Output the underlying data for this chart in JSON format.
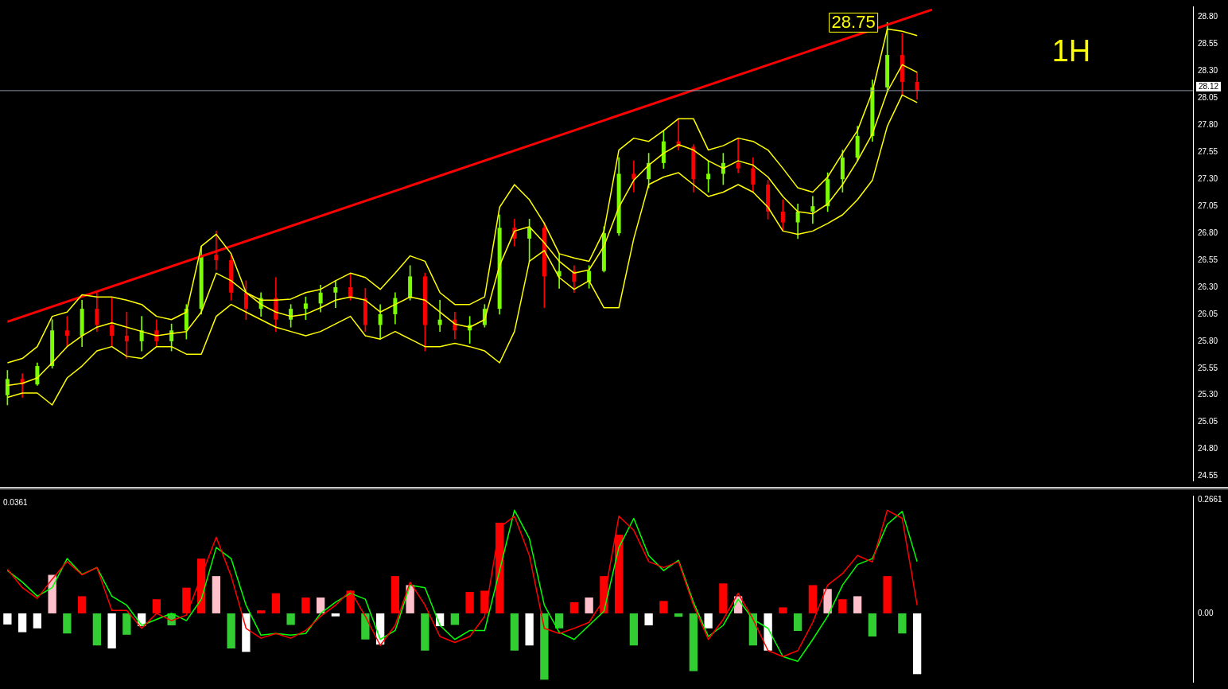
{
  "chart_data": [
    {
      "type": "candlestick",
      "categories": [
        null,
        null,
        null,
        null,
        null,
        null,
        null,
        null,
        null,
        null,
        null,
        null,
        null,
        null,
        null,
        null,
        null,
        null,
        null,
        null,
        null,
        null,
        null,
        null,
        null,
        null,
        null,
        null,
        null,
        null,
        null,
        null,
        null,
        null,
        null,
        null,
        null,
        null,
        null,
        null,
        null,
        null,
        null,
        null,
        null,
        null,
        null,
        null,
        null,
        null,
        null,
        null,
        null,
        null,
        null,
        null,
        null,
        null,
        null,
        null,
        null,
        null,
        null,
        null,
        null,
        null,
        null,
        null,
        null,
        null,
        null,
        null,
        null,
        null,
        null,
        null,
        null,
        null,
        null,
        null
      ],
      "ohlc": [
        [
          25.3,
          25.53,
          25.21,
          25.45
        ],
        [
          25.45,
          25.5,
          25.28,
          25.4
        ],
        [
          25.4,
          25.6,
          25.39,
          25.57
        ],
        [
          25.57,
          26.0,
          25.55,
          25.9
        ],
        [
          25.9,
          26.03,
          25.75,
          25.85
        ],
        [
          25.85,
          26.18,
          25.75,
          26.1
        ],
        [
          26.1,
          26.25,
          25.89,
          25.95
        ],
        [
          25.95,
          26.21,
          25.75,
          25.85
        ],
        [
          25.85,
          26.07,
          25.64,
          25.8
        ],
        [
          25.8,
          26.03,
          25.71,
          25.9
        ],
        [
          25.9,
          26.0,
          25.75,
          25.8
        ],
        [
          25.8,
          25.96,
          25.71,
          25.9
        ],
        [
          25.9,
          26.14,
          25.82,
          26.1
        ],
        [
          26.1,
          26.68,
          26.05,
          26.6
        ],
        [
          26.6,
          26.82,
          26.46,
          26.55
        ],
        [
          26.55,
          26.6,
          26.18,
          26.25
        ],
        [
          26.25,
          26.36,
          26.0,
          26.1
        ],
        [
          26.1,
          26.25,
          26.03,
          26.2
        ],
        [
          26.2,
          26.39,
          25.89,
          26.0
        ],
        [
          26.0,
          26.14,
          25.93,
          26.1
        ],
        [
          26.1,
          26.21,
          26.0,
          26.15
        ],
        [
          26.15,
          26.32,
          26.07,
          26.25
        ],
        [
          26.25,
          26.36,
          26.11,
          26.3
        ],
        [
          26.3,
          26.43,
          26.18,
          26.2
        ],
        [
          26.2,
          26.29,
          25.89,
          25.95
        ],
        [
          25.95,
          26.14,
          25.82,
          26.05
        ],
        [
          26.05,
          26.25,
          25.96,
          26.2
        ],
        [
          26.2,
          26.5,
          26.18,
          26.4
        ],
        [
          26.4,
          26.43,
          25.71,
          25.95
        ],
        [
          25.95,
          26.18,
          25.89,
          26.0
        ],
        [
          26.0,
          26.07,
          25.82,
          25.9
        ],
        [
          25.9,
          26.03,
          25.78,
          25.95
        ],
        [
          25.95,
          26.14,
          25.93,
          26.1
        ],
        [
          26.1,
          26.97,
          26.05,
          26.85
        ],
        [
          26.85,
          26.93,
          26.68,
          26.75
        ],
        [
          26.75,
          26.93,
          26.54,
          26.85
        ],
        [
          26.85,
          26.9,
          26.11,
          26.4
        ],
        [
          26.4,
          26.61,
          26.29,
          26.45
        ],
        [
          26.45,
          26.5,
          26.25,
          26.35
        ],
        [
          26.35,
          26.5,
          26.29,
          26.45
        ],
        [
          26.45,
          26.86,
          26.44,
          26.8
        ],
        [
          26.8,
          27.5,
          26.78,
          27.35
        ],
        [
          27.35,
          27.47,
          27.18,
          27.3
        ],
        [
          27.3,
          27.54,
          27.22,
          27.45
        ],
        [
          27.45,
          27.75,
          27.4,
          27.65
        ],
        [
          27.65,
          27.86,
          27.57,
          27.6
        ],
        [
          27.6,
          27.62,
          27.18,
          27.3
        ],
        [
          27.3,
          27.47,
          27.18,
          27.35
        ],
        [
          27.35,
          27.54,
          27.25,
          27.45
        ],
        [
          27.45,
          27.68,
          27.36,
          27.4
        ],
        [
          27.4,
          27.5,
          27.18,
          27.25
        ],
        [
          27.25,
          27.29,
          26.93,
          27.0
        ],
        [
          27.0,
          27.11,
          26.82,
          26.9
        ],
        [
          26.9,
          27.07,
          26.75,
          27.0
        ],
        [
          27.0,
          27.14,
          26.89,
          27.05
        ],
        [
          27.05,
          27.36,
          27.0,
          27.3
        ],
        [
          27.3,
          27.57,
          27.18,
          27.5
        ],
        [
          27.5,
          27.79,
          27.47,
          27.7
        ],
        [
          27.7,
          28.22,
          27.65,
          28.15
        ],
        [
          28.15,
          28.75,
          28.11,
          28.45
        ],
        [
          28.45,
          28.65,
          28.08,
          28.2
        ],
        [
          28.2,
          28.29,
          28.04,
          28.12
        ],
        null,
        null,
        null,
        null,
        null,
        null,
        null,
        null,
        null,
        null,
        null,
        null,
        null,
        null,
        null,
        null,
        null,
        null
      ],
      "colors": [
        "#7cfc00",
        "#ff0000",
        "#7cfc00",
        "#7cfc00",
        "#ff0000",
        "#7cfc00",
        "#ff0000",
        "#ff0000",
        "#ff0000",
        "#7cfc00",
        "#ff0000",
        "#7cfc00",
        "#7cfc00",
        "#7cfc00",
        "#ff0000",
        "#ff0000",
        "#ff0000",
        "#7cfc00",
        "#ff0000",
        "#7cfc00",
        "#7cfc00",
        "#7cfc00",
        "#7cfc00",
        "#ff0000",
        "#ff0000",
        "#7cfc00",
        "#7cfc00",
        "#7cfc00",
        "#ff0000",
        "#7cfc00",
        "#ff0000",
        "#7cfc00",
        "#7cfc00",
        "#7cfc00",
        "#ff0000",
        "#7cfc00",
        "#ff0000",
        "#7cfc00",
        "#ff0000",
        "#7cfc00",
        "#7cfc00",
        "#7cfc00",
        "#ff0000",
        "#7cfc00",
        "#7cfc00",
        "#ff0000",
        "#ff0000",
        "#7cfc00",
        "#7cfc00",
        "#ff0000",
        "#ff0000",
        "#ff0000",
        "#ff0000",
        "#7cfc00",
        "#7cfc00",
        "#7cfc00",
        "#7cfc00",
        "#7cfc00",
        "#7cfc00",
        "#7cfc00",
        "#ff0000",
        "#ff0000",
        null,
        null,
        null,
        null,
        null,
        null,
        null,
        null,
        null,
        null,
        null,
        null,
        null,
        null,
        null,
        null,
        null,
        null
      ],
      "series": [
        {
          "type": "line",
          "color": "#ffff00",
          "values": [
            25.6,
            25.64,
            25.75,
            26.03,
            26.07,
            26.23,
            26.21,
            26.21,
            26.18,
            26.14,
            26.03,
            26.0,
            26.07,
            26.68,
            26.79,
            26.61,
            26.25,
            26.18,
            26.18,
            26.19,
            26.25,
            26.28,
            26.36,
            26.43,
            26.39,
            26.28,
            26.43,
            26.59,
            26.54,
            26.25,
            26.14,
            26.14,
            26.21,
            27.04,
            27.25,
            27.11,
            26.89,
            26.61,
            26.57,
            26.54,
            26.82,
            27.57,
            27.68,
            27.65,
            27.75,
            27.86,
            27.86,
            27.57,
            27.61,
            27.68,
            27.65,
            27.57,
            27.4,
            27.22,
            27.18,
            27.32,
            27.54,
            27.75,
            28.11,
            28.69,
            28.67,
            28.63,
            null,
            null,
            null,
            null,
            null,
            null,
            null,
            null,
            null,
            null,
            null,
            null,
            null,
            null,
            null,
            null,
            null,
            null
          ]
        },
        {
          "type": "line",
          "color": "#ffff00",
          "values": [
            25.39,
            25.41,
            25.46,
            25.6,
            25.75,
            25.85,
            25.93,
            25.97,
            25.93,
            25.89,
            25.85,
            25.87,
            25.89,
            26.07,
            26.43,
            26.36,
            26.25,
            26.14,
            26.07,
            26.03,
            26.05,
            26.11,
            26.18,
            26.21,
            26.18,
            26.07,
            26.14,
            26.21,
            26.18,
            26.07,
            25.96,
            25.93,
            26.0,
            26.5,
            26.82,
            26.86,
            26.71,
            26.54,
            26.43,
            26.46,
            26.68,
            27.04,
            27.29,
            27.43,
            27.54,
            27.62,
            27.57,
            27.47,
            27.4,
            27.47,
            27.43,
            27.32,
            27.14,
            27.0,
            26.98,
            27.07,
            27.25,
            27.47,
            27.72,
            28.11,
            28.36,
            28.29,
            null,
            null,
            null,
            null,
            null,
            null,
            null,
            null,
            null,
            null,
            null,
            null,
            null,
            null,
            null,
            null,
            null,
            null
          ]
        },
        {
          "type": "line",
          "color": "#ffff00",
          "values": [
            25.28,
            25.32,
            25.32,
            25.21,
            25.46,
            25.57,
            25.71,
            25.75,
            25.66,
            25.64,
            25.75,
            25.75,
            25.68,
            25.68,
            26.03,
            26.14,
            26.07,
            26.0,
            25.93,
            25.89,
            25.85,
            25.89,
            25.96,
            26.03,
            25.85,
            25.82,
            25.89,
            25.82,
            25.75,
            25.75,
            25.78,
            25.75,
            25.71,
            25.6,
            25.89,
            26.54,
            26.64,
            26.39,
            26.28,
            26.36,
            26.11,
            26.11,
            26.75,
            27.25,
            27.32,
            27.36,
            27.25,
            27.14,
            27.18,
            27.25,
            27.18,
            27.04,
            26.82,
            26.79,
            26.82,
            26.89,
            26.97,
            27.11,
            27.29,
            27.79,
            28.08,
            28.01,
            null,
            null,
            null,
            null,
            null,
            null,
            null,
            null,
            null,
            null,
            null,
            null,
            null,
            null,
            null,
            null,
            null,
            null
          ]
        },
        {
          "type": "line",
          "color": "#ff0000",
          "values": [
            25.98,
            null,
            null,
            null,
            null,
            null,
            null,
            null,
            null,
            null,
            null,
            null,
            null,
            null,
            null,
            null,
            null,
            null,
            null,
            null,
            null,
            null,
            null,
            null,
            null,
            null,
            null,
            null,
            null,
            null,
            null,
            null,
            null,
            null,
            null,
            null,
            null,
            null,
            null,
            null,
            null,
            null,
            null,
            null,
            null,
            null,
            null,
            null,
            null,
            null,
            null,
            null,
            null,
            null,
            null,
            null,
            null,
            null,
            null,
            null,
            null,
            null,
            28.87,
            null,
            null,
            null,
            null,
            null,
            null,
            null,
            null,
            null,
            null,
            null,
            null,
            null,
            null,
            null,
            null,
            null
          ]
        }
      ],
      "ylim": [
        24.51,
        28.9
      ],
      "yticks": [
        24.55,
        {
          "value": 24.8,
          "label": "24.80"
        },
        25.05,
        {
          "value": 25.3,
          "label": "25.30"
        },
        25.55,
        {
          "value": 25.8,
          "label": "25.80"
        },
        26.05,
        {
          "value": 26.3,
          "label": "26.30"
        },
        26.55,
        {
          "value": 26.8,
          "label": "26.80"
        },
        27.05,
        {
          "value": 27.3,
          "label": "27.30"
        },
        27.55,
        {
          "value": 27.8,
          "label": "27.80"
        },
        28.05,
        {
          "value": 28.3,
          "label": "28.30"
        },
        28.55,
        {
          "value": 28.8,
          "label": "28.80"
        }
      ],
      "ref_lines": [
        {
          "axis": "y",
          "value": 28.12,
          "label": "28.12",
          "color": "#8a9aa8"
        }
      ],
      "annotations": [
        "28.75",
        "1H"
      ],
      "grid": false,
      "legend": false,
      "tick_labels": "y"
    },
    {
      "type": "bar",
      "categories": [
        null,
        null,
        null,
        null,
        null,
        null,
        null,
        null,
        null,
        null,
        null,
        null,
        null,
        null,
        null,
        null,
        null,
        null,
        null,
        null,
        null,
        null,
        null,
        null,
        null,
        null,
        null,
        null,
        null,
        null,
        null,
        null,
        null,
        null,
        null,
        null,
        null,
        null,
        null,
        null,
        null,
        null,
        null,
        null,
        null,
        null,
        null,
        null,
        null,
        null,
        null,
        null,
        null,
        null,
        null,
        null,
        null,
        null,
        null,
        null,
        null,
        null,
        null,
        null,
        null,
        null,
        null,
        null,
        null,
        null,
        null,
        null,
        null,
        null,
        null,
        null,
        null,
        null,
        null,
        null
      ],
      "series": [
        {
          "type": "bar",
          "values": [
            -0.026,
            -0.044,
            -0.035,
            0.09,
            -0.047,
            0.04,
            -0.075,
            -0.082,
            -0.05,
            -0.03,
            0.033,
            -0.028,
            0.06,
            0.128,
            0.087,
            -0.082,
            -0.09,
            0.007,
            0.047,
            -0.027,
            0.037,
            0.037,
            -0.007,
            0.053,
            -0.061,
            -0.073,
            0.087,
            0.066,
            -0.087,
            -0.03,
            -0.027,
            0.05,
            0.053,
            0.212,
            -0.087,
            -0.075,
            -0.155,
            -0.035,
            0.026,
            0.037,
            0.087,
            0.184,
            -0.075,
            -0.028,
            0.029,
            -0.008,
            -0.135,
            -0.035,
            0.07,
            0.04,
            -0.075,
            -0.087,
            0.014,
            -0.041,
            0.066,
            0.057,
            0.033,
            0.04,
            -0.054,
            0.087,
            -0.047,
            -0.142,
            null,
            null,
            null,
            null,
            null,
            null,
            null,
            null,
            null,
            null,
            null,
            null,
            null,
            null,
            null,
            null,
            null,
            null
          ],
          "colors": [
            "#ffffff",
            "#ffffff",
            "#ffffff",
            "#ffc0cb",
            "#32cd32",
            "#ff0000",
            "#32cd32",
            "#ffffff",
            "#32cd32",
            "#ffffff",
            "#ff0000",
            "#32cd32",
            "#ff0000",
            "#ff0000",
            "#ffc0cb",
            "#32cd32",
            "#ffffff",
            "#ff0000",
            "#ff0000",
            "#32cd32",
            "#ff0000",
            "#ffc0cb",
            "#ffffff",
            "#ff0000",
            "#32cd32",
            "#ffffff",
            "#ff0000",
            "#ffc0cb",
            "#32cd32",
            "#ffffff",
            "#32cd32",
            "#ff0000",
            "#ff0000",
            "#ff0000",
            "#32cd32",
            "#ffffff",
            "#32cd32",
            "#32cd32",
            "#ff0000",
            "#ffc0cb",
            "#ff0000",
            "#ff0000",
            "#32cd32",
            "#ffffff",
            "#ff0000",
            "#32cd32",
            "#32cd32",
            "#ffffff",
            "#ff0000",
            "#ffc0cb",
            "#32cd32",
            "#ffffff",
            "#ff0000",
            "#32cd32",
            "#ff0000",
            "#ffc0cb",
            "#ff0000",
            "#ffc0cb",
            "#32cd32",
            "#ff0000",
            "#32cd32",
            "#ffffff",
            null,
            null,
            null,
            null,
            null,
            null,
            null,
            null,
            null,
            null,
            null,
            null,
            null,
            null,
            null,
            null,
            null,
            null
          ]
        },
        {
          "type": "line",
          "color": "#ff0000",
          "values": [
            0.103,
            0.06,
            0.035,
            0.08,
            0.121,
            0.09,
            0.107,
            0.007,
            0.007,
            -0.035,
            0,
            -0.017,
            -0.004,
            0.087,
            0.178,
            0.087,
            -0.035,
            -0.058,
            -0.047,
            -0.058,
            -0.04,
            -0.007,
            0.019,
            0.053,
            -0.007,
            -0.075,
            -0.028,
            0.073,
            0.019,
            -0.054,
            -0.068,
            -0.054,
            -0.007,
            0.201,
            0.227,
            0.135,
            -0.035,
            -0.047,
            -0.035,
            -0.021,
            0.033,
            0.227,
            0.194,
            0.121,
            0.107,
            0.121,
            0.019,
            -0.061,
            -0.014,
            0.047,
            -0.014,
            -0.087,
            -0.101,
            -0.087,
            -0.021,
            0.066,
            0.093,
            0.135,
            0.12,
            0.241,
            0.222,
            0.019,
            null,
            null,
            null,
            null,
            null,
            null,
            null,
            null,
            null,
            null,
            null,
            null,
            null,
            null,
            null,
            null,
            null,
            null
          ]
        },
        {
          "type": "line",
          "color": "#00ff00",
          "values": [
            0.1,
            0.073,
            0.04,
            0.06,
            0.128,
            0.091,
            0.107,
            0.04,
            0.019,
            -0.028,
            -0.014,
            0,
            -0.017,
            0.033,
            0.154,
            0.128,
            0.019,
            -0.051,
            -0.047,
            -0.051,
            -0.047,
            0,
            0.026,
            0.047,
            0.033,
            -0.061,
            -0.04,
            0.066,
            0.06,
            -0.028,
            -0.061,
            -0.04,
            -0.04,
            0.1,
            0.241,
            0.175,
            0.019,
            -0.044,
            -0.061,
            -0.028,
            0.005,
            0.154,
            0.222,
            0.135,
            0.1,
            0.124,
            0.026,
            -0.054,
            -0.028,
            0.033,
            -0.014,
            -0.035,
            -0.101,
            -0.112,
            -0.061,
            -0.007,
            0.066,
            0.114,
            0.128,
            0.208,
            0.238,
            0.121,
            null,
            null,
            null,
            null,
            null,
            null,
            null,
            null,
            null,
            null,
            null,
            null,
            null,
            null,
            null,
            null,
            null,
            null
          ]
        }
      ],
      "ylim": [
        -0.16,
        0.275
      ],
      "yticks": [
        {
          "value": 0,
          "label": "0.00"
        },
        0.2661
      ],
      "annotations": [
        "0.0361"
      ],
      "grid": false,
      "legend": false,
      "tick_labels": "y"
    }
  ]
}
